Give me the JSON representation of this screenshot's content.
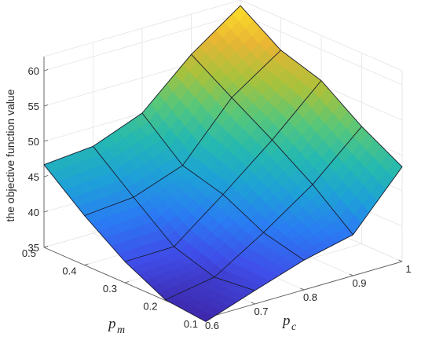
{
  "chart_data": {
    "type": "surface",
    "title": "",
    "xlabel": "p_c",
    "ylabel": "p_m",
    "zlabel": "the objective function value",
    "labels": {
      "z": "the objective function value",
      "pc_var": "p",
      "pc_sub": "c",
      "pm_var": "p",
      "pm_sub": "m"
    },
    "pc": [
      0.6,
      0.7,
      0.8,
      0.9,
      1.0
    ],
    "pm": [
      0.1,
      0.2,
      0.3,
      0.4,
      0.5
    ],
    "z_rows_description": "rows indexed by pm (0.1..0.5), columns by pc (0.6..1.0)",
    "z": [
      [
        34.5,
        36.9,
        39.2,
        40.8,
        48.4
      ],
      [
        35.1,
        36.3,
        40.6,
        45.4,
        51.6
      ],
      [
        38.0,
        38.1,
        43.5,
        49.2,
        55.6
      ],
      [
        42.0,
        42.6,
        45.1,
        52.7,
        57.4
      ],
      [
        46.7,
        47.3,
        50.0,
        56.3,
        61.2
      ]
    ],
    "pc_ticks": [
      "0.6",
      "0.7",
      "0.8",
      "0.9",
      "1"
    ],
    "pm_ticks": [
      "0.1",
      "0.2",
      "0.3",
      "0.4",
      "0.5"
    ],
    "z_ticks": [
      "35",
      "40",
      "45",
      "50",
      "55",
      "60"
    ],
    "xlim": [
      0.6,
      1.0
    ],
    "ylim": [
      0.1,
      0.5
    ],
    "zlim": [
      35,
      62
    ],
    "grid": true,
    "colormap": [
      "#3e26a8",
      "#3f4ee9",
      "#2a7cf3",
      "#1ea1d7",
      "#25b9b0",
      "#57c77a",
      "#a8c23c",
      "#e9b534",
      "#fce127"
    ]
  }
}
